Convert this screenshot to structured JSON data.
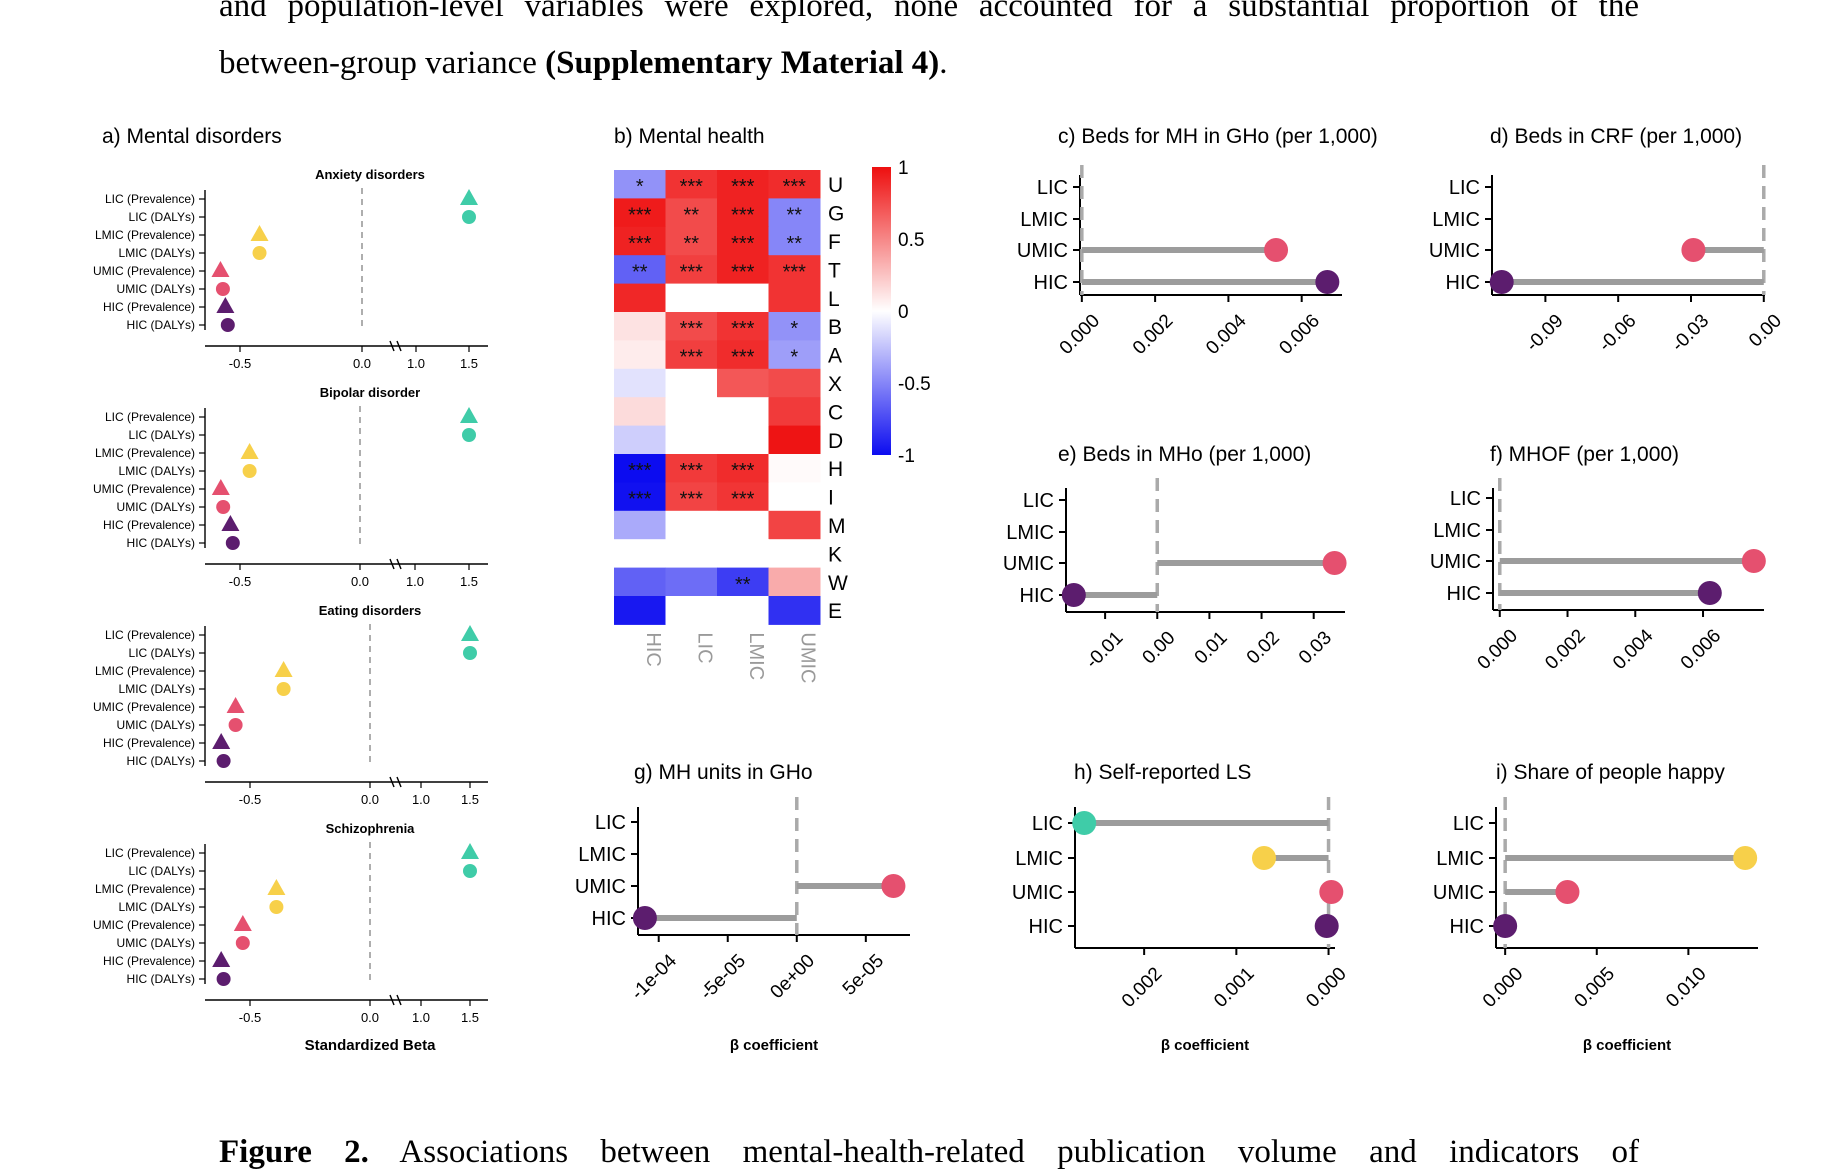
{
  "paragraph": {
    "line1": "and population-level variables were explored, none accounted for a substantial proportion of the",
    "line2_prefix": "between-group variance ",
    "line2_bold": "(Supplementary Material 4)",
    "line2_suffix": "."
  },
  "caption": {
    "bold": "Figure 2.",
    "text": " Associations between mental-health-related publication volume and indicators of"
  },
  "chart_data": [
    {
      "id": "a",
      "type": "scatter",
      "title": "a) Mental disorders",
      "xlabel": "Standardized Beta",
      "x_ticks": [
        "-0.5",
        "0.0",
        "1.0",
        "1.5"
      ],
      "rows": [
        "LIC (Prevalence)",
        "LIC (DALYs)",
        "LMIC (Prevalence)",
        "LMIC (DALYs)",
        "UMIC (Prevalence)",
        "UMIC (DALYs)",
        "HIC (Prevalence)",
        "HIC (DALYs)"
      ],
      "legend_shapes": {
        "Prevalence": "triangle",
        "DALYs": "circle"
      },
      "panels": [
        {
          "subtitle": "Anxiety disorders",
          "values": [
            1.5,
            1.5,
            -0.42,
            -0.42,
            -0.58,
            -0.57,
            -0.56,
            -0.55
          ]
        },
        {
          "subtitle": "Bipolar disorder",
          "values": [
            1.5,
            1.5,
            -0.46,
            -0.46,
            -0.58,
            -0.57,
            -0.54,
            -0.53
          ]
        },
        {
          "subtitle": "Eating disorders",
          "values": [
            1.5,
            1.5,
            -0.36,
            -0.36,
            -0.56,
            -0.56,
            -0.62,
            -0.61
          ]
        },
        {
          "subtitle": "Schizophrenia",
          "values": [
            1.5,
            1.5,
            -0.39,
            -0.39,
            -0.53,
            -0.53,
            -0.62,
            -0.61
          ]
        }
      ]
    },
    {
      "id": "b",
      "type": "heatmap",
      "title": "b) Mental health",
      "columns": [
        "HIC",
        "LIC",
        "LMIC",
        "UMIC"
      ],
      "rows": [
        "U",
        "G",
        "F",
        "T",
        "L",
        "B",
        "A",
        "X",
        "C",
        "D",
        "H",
        "I",
        "M",
        "K",
        "W",
        "E"
      ],
      "values": [
        [
          -0.45,
          0.85,
          0.92,
          0.88
        ],
        [
          0.95,
          0.75,
          0.92,
          -0.5
        ],
        [
          0.92,
          0.75,
          0.92,
          -0.5
        ],
        [
          -0.65,
          0.8,
          0.92,
          0.85
        ],
        [
          0.9,
          0.0,
          0.0,
          0.85
        ],
        [
          0.12,
          0.75,
          0.85,
          -0.45
        ],
        [
          0.08,
          0.8,
          0.88,
          -0.4
        ],
        [
          -0.12,
          0.0,
          0.7,
          0.75
        ],
        [
          0.15,
          0.0,
          0.0,
          0.82
        ],
        [
          -0.2,
          0.0,
          0.0,
          0.98
        ],
        [
          -1.0,
          0.82,
          0.88,
          0.02
        ],
        [
          -0.98,
          0.78,
          0.84,
          0.0
        ],
        [
          -0.35,
          0.0,
          0.0,
          0.78
        ],
        [
          0.0,
          0.0,
          0.0,
          0.0
        ],
        [
          -0.65,
          -0.6,
          -0.8,
          0.35
        ],
        [
          -0.95,
          0.0,
          0.0,
          -0.85
        ]
      ],
      "stars": [
        [
          "*",
          "***",
          "***",
          "***"
        ],
        [
          "***",
          "**",
          "***",
          "**"
        ],
        [
          "***",
          "**",
          "***",
          "**"
        ],
        [
          "**",
          "***",
          "***",
          "***"
        ],
        [
          "",
          "",
          "",
          ""
        ],
        [
          "",
          "***",
          "***",
          "*"
        ],
        [
          "",
          "***",
          "***",
          "*"
        ],
        [
          "",
          "",
          "",
          ""
        ],
        [
          "",
          "",
          "",
          ""
        ],
        [
          "",
          "",
          "",
          ""
        ],
        [
          "***",
          "***",
          "***",
          ""
        ],
        [
          "***",
          "***",
          "***",
          ""
        ],
        [
          "",
          "",
          "",
          ""
        ],
        [
          "",
          "",
          "",
          ""
        ],
        [
          "",
          "",
          "**",
          ""
        ],
        [
          "",
          "",
          "",
          ""
        ]
      ],
      "colorbar_ticks": [
        "1",
        "0.5",
        "0",
        "-0.5",
        "-1"
      ],
      "colorbar_colors": {
        "high": "#ee0f0f",
        "mid": "#ffffff",
        "low": "#0c0cf0"
      }
    },
    {
      "id": "c",
      "type": "lollipop",
      "title": "c) Beds for MH in GHo (per 1,000)",
      "categories": [
        "LIC",
        "LMIC",
        "UMIC",
        "HIC"
      ],
      "values": [
        null,
        null,
        0.0053,
        0.0067
      ],
      "colors": [
        null,
        null,
        "#e5506f",
        "#5c1d6e"
      ],
      "xlim": [
        -5e-05,
        0.0071
      ],
      "x_ticks": [
        0.0,
        0.002,
        0.004,
        0.006
      ],
      "x_tick_labels": [
        "0.000",
        "0.002",
        "0.004",
        "0.006"
      ],
      "xlabel": ""
    },
    {
      "id": "d",
      "type": "lollipop",
      "title": "d) Beds in CRF (per 1,000)",
      "categories": [
        "LIC",
        "LMIC",
        "UMIC",
        "HIC"
      ],
      "values": [
        null,
        null,
        -0.029,
        -0.108
      ],
      "colors": [
        null,
        null,
        "#e5506f",
        "#5c1d6e"
      ],
      "xlim": [
        -0.112,
        0.0005
      ],
      "x_ticks": [
        -0.09,
        -0.06,
        -0.03,
        0.0
      ],
      "x_tick_labels": [
        "-0.09",
        "-0.06",
        "-0.03",
        "0.00"
      ],
      "xlabel": ""
    },
    {
      "id": "e",
      "type": "lollipop",
      "title": "e) Beds in MHo (per 1,000)",
      "categories": [
        "LIC",
        "LMIC",
        "UMIC",
        "HIC"
      ],
      "values": [
        null,
        null,
        0.034,
        -0.016
      ],
      "colors": [
        null,
        null,
        "#e5506f",
        "#5c1d6e"
      ],
      "xlim": [
        -0.0175,
        0.036
      ],
      "x_ticks": [
        -0.01,
        0.0,
        0.01,
        0.02,
        0.03
      ],
      "x_tick_labels": [
        "-0.01",
        "0.00",
        "0.01",
        "0.02",
        "0.03"
      ],
      "xlabel": ""
    },
    {
      "id": "f",
      "type": "lollipop",
      "title": "f) MHOF (per 1,000)",
      "categories": [
        "LIC",
        "LMIC",
        "UMIC",
        "HIC"
      ],
      "values": [
        null,
        null,
        0.0075,
        0.0062
      ],
      "colors": [
        null,
        null,
        "#e5506f",
        "#5c1d6e"
      ],
      "xlim": [
        -0.0002,
        0.0078
      ],
      "x_ticks": [
        0.0,
        0.002,
        0.004,
        0.006
      ],
      "x_tick_labels": [
        "0.000",
        "0.002",
        "0.004",
        "0.006"
      ],
      "xlabel": ""
    },
    {
      "id": "g",
      "type": "lollipop",
      "title": "g) MH units in GHo",
      "categories": [
        "LIC",
        "LMIC",
        "UMIC",
        "HIC"
      ],
      "values": [
        null,
        null,
        7e-05,
        -0.00011
      ],
      "colors": [
        null,
        null,
        "#e5506f",
        "#5c1d6e"
      ],
      "xlim": [
        -0.000115,
        8.2e-05
      ],
      "x_ticks": [
        -0.0001,
        -5e-05,
        0.0,
        5e-05
      ],
      "x_tick_labels": [
        "-1e-04",
        "-5e-05",
        "0e+00",
        "5e-05"
      ],
      "xlabel": "β coefficient"
    },
    {
      "id": "h",
      "type": "lollipop",
      "title": "h) Self-reported LS",
      "categories": [
        "LIC",
        "LMIC",
        "UMIC",
        "HIC"
      ],
      "values": [
        0.00265,
        0.0007,
        -3e-05,
        2e-05
      ],
      "colors": [
        "#3fcca8",
        "#f7d04a",
        "#e5506f",
        "#5c1d6e"
      ],
      "xlim": [
        -7e-05,
        0.00275
      ],
      "reversed_axis": true,
      "x_ticks": [
        0.002,
        0.001,
        0.0
      ],
      "x_tick_labels": [
        "0.002",
        "0.001",
        "0.000"
      ],
      "xlabel": "β coefficient"
    },
    {
      "id": "i",
      "type": "lollipop",
      "title": "i) Share of people happy",
      "categories": [
        "LIC",
        "LMIC",
        "UMIC",
        "HIC"
      ],
      "values": [
        null,
        0.0131,
        0.0034,
        0.0
      ],
      "colors": [
        null,
        "#f7d04a",
        "#e5506f",
        "#5c1d6e"
      ],
      "xlim": [
        -0.0005,
        0.0138
      ],
      "x_ticks": [
        0.0,
        0.005,
        0.01
      ],
      "x_tick_labels": [
        "0.000",
        "0.005",
        "0.010"
      ],
      "xlabel": "β coefficient"
    }
  ]
}
